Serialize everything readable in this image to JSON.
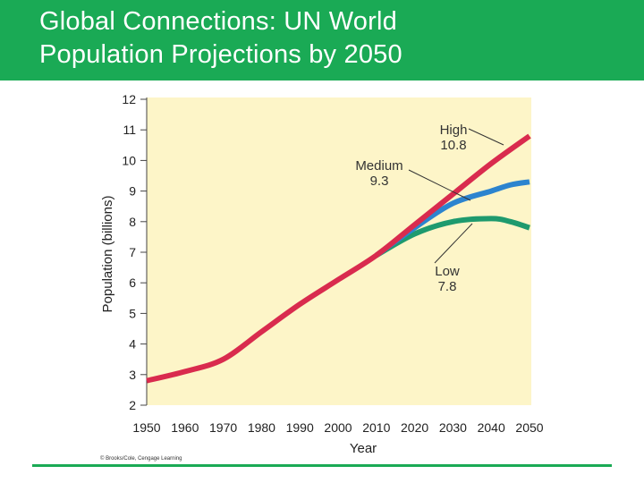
{
  "header": {
    "title_line1": "Global Connections: UN World",
    "title_line2": "Population Projections by 2050"
  },
  "figure": {
    "credit": "© Brooks/Cole, Cengage Learning"
  },
  "colors": {
    "header_bg": "#1aaa55",
    "plot_bg": "#fdf5c8",
    "high": "#d92b4e",
    "medium": "#2c84cf",
    "low": "#1e9a6e"
  },
  "chart_data": {
    "type": "line",
    "title": "",
    "xlabel": "Year",
    "ylabel": "Population (billions)",
    "xlim": [
      1950,
      2050
    ],
    "ylim": [
      2,
      12
    ],
    "xticks": [
      "1950",
      "1960",
      "1970",
      "1980",
      "1990",
      "2000",
      "2010",
      "2020",
      "2030",
      "2040",
      "2050"
    ],
    "yticks": [
      "2",
      "3",
      "4",
      "5",
      "6",
      "7",
      "8",
      "9",
      "10",
      "11",
      "12"
    ],
    "series": [
      {
        "name": "High",
        "x": [
          1950,
          1960,
          1970,
          1980,
          1990,
          2000,
          2010,
          2020,
          2030,
          2040,
          2050
        ],
        "values": [
          2.8,
          3.1,
          3.5,
          4.4,
          5.3,
          6.1,
          6.9,
          7.9,
          8.9,
          9.9,
          10.8
        ]
      },
      {
        "name": "Medium",
        "x": [
          2010,
          2020,
          2030,
          2040,
          2045,
          2050
        ],
        "values": [
          6.9,
          7.8,
          8.6,
          9.0,
          9.2,
          9.3
        ]
      },
      {
        "name": "Low",
        "x": [
          2010,
          2020,
          2030,
          2040,
          2045,
          2050
        ],
        "values": [
          6.9,
          7.6,
          8.0,
          8.1,
          8.0,
          7.8
        ]
      }
    ],
    "annotations": [
      {
        "series": "High",
        "label": "High",
        "value": "10.8"
      },
      {
        "series": "Medium",
        "label": "Medium",
        "value": "9.3"
      },
      {
        "series": "Low",
        "label": "Low",
        "value": "7.8"
      }
    ]
  }
}
